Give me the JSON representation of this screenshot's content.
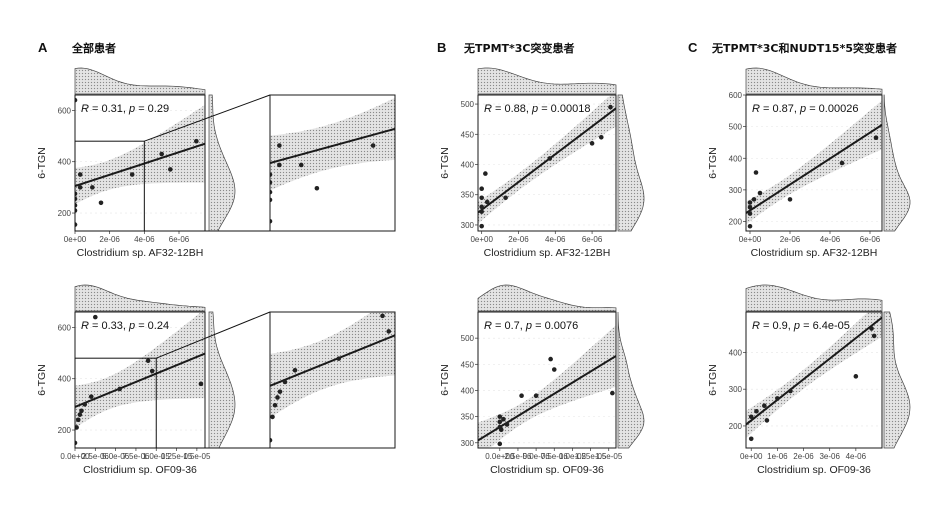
{
  "panels": [
    {
      "label": "A",
      "title": "全部患者"
    },
    {
      "label": "B",
      "title": "无TPMT*3C突变患者"
    },
    {
      "label": "C",
      "title": "无TPMT*3C和NUDT15*5突变患者"
    }
  ],
  "ylabel": "6-TGN",
  "palette": {
    "band": "#c8c8c8",
    "line": "#1a1a1a",
    "point": "#222222",
    "frame": "#1a1a1a",
    "marginal": "#cfcfcf"
  },
  "chart_data": [
    {
      "id": "A1",
      "type": "scatter",
      "panel": "A",
      "xlabel": "Clostridium sp. AF32-12BH",
      "ylabel": "6-TGN",
      "stat": {
        "r": "0.31",
        "p": "0.29"
      },
      "xlim": [
        0,
        7.5e-06
      ],
      "ylim": [
        130,
        660
      ],
      "xticks": [
        0,
        2e-06,
        4e-06,
        6e-06
      ],
      "xtick_labels": [
        "0e+00",
        "2e-06",
        "4e-06",
        "6e-06"
      ],
      "yticks": [
        200,
        400,
        600
      ],
      "ytick_labels": [
        "200",
        "400",
        "600"
      ],
      "fit": {
        "intercept": 305,
        "slope": 22000000
      },
      "points": [
        [
          0,
          640
        ],
        [
          0,
          155
        ],
        [
          0,
          210
        ],
        [
          0,
          230
        ],
        [
          0,
          255
        ],
        [
          0,
          275
        ],
        [
          3e-07,
          300
        ],
        [
          3e-07,
          350
        ],
        [
          1e-06,
          300
        ],
        [
          1.5e-06,
          240
        ],
        [
          3.3e-06,
          350
        ],
        [
          5e-06,
          430
        ],
        [
          5.5e-06,
          370
        ],
        [
          7e-06,
          480
        ]
      ],
      "zoom": {
        "xlim": [
          0,
          4e-06
        ],
        "ylim": [
          130,
          480
        ],
        "range_x": [
          0,
          4e-06
        ],
        "range_y": [
          130,
          480
        ]
      }
    },
    {
      "id": "A2",
      "type": "scatter",
      "panel": "A",
      "xlabel": "Clostridium sp. OF09-36",
      "ylabel": "6-TGN",
      "stat": {
        "r": "0.33",
        "p": "0.24"
      },
      "xlim": [
        0,
        1.6e-05
      ],
      "ylim": [
        130,
        660
      ],
      "xticks": [
        0,
        2.5e-06,
        5e-06,
        7.5e-06,
        1e-05,
        1.25e-05,
        1.5e-05
      ],
      "xtick_labels": [
        "0.0e+00",
        "2.5e-06",
        "5.0e-06",
        "7.5e-06",
        "1.0e-05",
        "1.25e-05",
        "1.5e-05"
      ],
      "yticks": [
        200,
        400,
        600
      ],
      "ytick_labels": [
        "200",
        "400",
        "600"
      ],
      "fit": {
        "intercept": 290,
        "slope": 13000000
      },
      "points": [
        [
          0,
          150
        ],
        [
          2e-07,
          210
        ],
        [
          4e-07,
          240
        ],
        [
          6e-07,
          260
        ],
        [
          8e-07,
          275
        ],
        [
          1.2e-06,
          300
        ],
        [
          2e-06,
          330
        ],
        [
          2.5e-06,
          640
        ],
        [
          5.5e-06,
          360
        ],
        [
          9e-06,
          470
        ],
        [
          9.5e-06,
          430
        ],
        [
          1.55e-05,
          380
        ]
      ],
      "zoom": {
        "xlim": [
          0,
          1e-05
        ],
        "ylim": [
          130,
          480
        ],
        "range_x": [
          0,
          1e-05
        ],
        "range_y": [
          130,
          480
        ]
      }
    },
    {
      "id": "B1",
      "type": "scatter",
      "panel": "B",
      "xlabel": "Clostridium sp. AF32-12BH",
      "ylabel": "6-TGN",
      "stat": {
        "r": "0.88",
        "p": "0.00018"
      },
      "xlim": [
        -2e-07,
        7.3e-06
      ],
      "ylim": [
        290,
        515
      ],
      "xticks": [
        0,
        2e-06,
        4e-06,
        6e-06
      ],
      "xtick_labels": [
        "0e+00",
        "2e-06",
        "4e-06",
        "6e-06"
      ],
      "yticks": [
        300,
        350,
        400,
        450,
        500
      ],
      "ytick_labels": [
        "300",
        "350",
        "400",
        "450",
        "500"
      ],
      "fit": {
        "intercept": 325,
        "slope": 23000000
      },
      "points": [
        [
          0,
          298
        ],
        [
          0,
          322
        ],
        [
          0,
          330
        ],
        [
          0,
          345
        ],
        [
          0,
          360
        ],
        [
          2e-07,
          385
        ],
        [
          3e-07,
          338
        ],
        [
          1.3e-06,
          345
        ],
        [
          3.7e-06,
          410
        ],
        [
          6e-06,
          435
        ],
        [
          6.5e-06,
          445
        ],
        [
          7e-06,
          495
        ]
      ]
    },
    {
      "id": "B2",
      "type": "scatter",
      "panel": "B",
      "xlabel": "Clostridium sp. OF09-36",
      "ylabel": "6-TGN",
      "stat": {
        "r": "0.7",
        "p": "0.0076"
      },
      "xlim": [
        -3e-06,
        1.6e-05
      ],
      "ylim": [
        290,
        550
      ],
      "xticks": [
        0,
        2.5e-06,
        5e-06,
        7.5e-06,
        1e-05,
        1.25e-05,
        1.5e-05
      ],
      "xtick_labels": [
        "0.0e+00",
        "2.5e-06",
        "5.0e-06",
        "7.5e-06",
        "1.0e-05",
        "1.25e-05",
        "1.5e-05"
      ],
      "yticks": [
        300,
        350,
        400,
        450,
        500
      ],
      "ytick_labels": [
        "300",
        "350",
        "400",
        "450",
        "500"
      ],
      "fit": {
        "intercept": 330,
        "slope": 8500000
      },
      "points": [
        [
          0,
          298
        ],
        [
          0,
          330
        ],
        [
          0,
          340
        ],
        [
          0,
          350
        ],
        [
          2e-07,
          325
        ],
        [
          5e-07,
          345
        ],
        [
          1e-06,
          335
        ],
        [
          3e-06,
          390
        ],
        [
          5e-06,
          390
        ],
        [
          7e-06,
          460
        ],
        [
          7.5e-06,
          440
        ],
        [
          1.55e-05,
          395
        ]
      ]
    },
    {
      "id": "C1",
      "type": "scatter",
      "panel": "C",
      "xlabel": "Clostridium sp. AF32-12BH",
      "ylabel": "6-TGN",
      "stat": {
        "r": "0.87",
        "p": "0.00026"
      },
      "xlim": [
        -2e-07,
        6.6e-06
      ],
      "ylim": [
        170,
        600
      ],
      "xticks": [
        0,
        2e-06,
        4e-06,
        6e-06
      ],
      "xtick_labels": [
        "0e+00",
        "2e-06",
        "4e-06",
        "6e-06"
      ],
      "yticks": [
        200,
        300,
        400,
        500,
        600
      ],
      "ytick_labels": [
        "200",
        "300",
        "400",
        "500",
        "600"
      ],
      "fit": {
        "intercept": 235,
        "slope": 41000000
      },
      "points": [
        [
          0,
          185
        ],
        [
          0,
          225
        ],
        [
          0,
          245
        ],
        [
          0,
          260
        ],
        [
          2e-07,
          270
        ],
        [
          3e-07,
          355
        ],
        [
          5e-07,
          290
        ],
        [
          2e-06,
          270
        ],
        [
          4.6e-06,
          385
        ],
        [
          6.3e-06,
          465
        ]
      ]
    },
    {
      "id": "C2",
      "type": "scatter",
      "panel": "C",
      "xlabel": "Clostridium sp. OF09-36",
      "ylabel": "6-TGN",
      "stat": {
        "r": "0.9",
        "p": "6.4e-05"
      },
      "xlim": [
        -2e-07,
        5e-06
      ],
      "ylim": [
        140,
        510
      ],
      "xticks": [
        0,
        1e-06,
        2e-06,
        3e-06,
        4e-06
      ],
      "xtick_labels": [
        "0e+00",
        "1e-06",
        "2e-06",
        "3e-06",
        "4e-06"
      ],
      "yticks": [
        200,
        300,
        400
      ],
      "ytick_labels": [
        "200",
        "300",
        "400"
      ],
      "fit": {
        "intercept": 215,
        "slope": 56000000
      },
      "points": [
        [
          0,
          165
        ],
        [
          0,
          225
        ],
        [
          2e-07,
          240
        ],
        [
          5e-07,
          255
        ],
        [
          6e-07,
          215
        ],
        [
          1e-06,
          275
        ],
        [
          1.5e-06,
          295
        ],
        [
          4e-06,
          335
        ],
        [
          4.6e-06,
          465
        ],
        [
          4.7e-06,
          445
        ]
      ]
    }
  ]
}
